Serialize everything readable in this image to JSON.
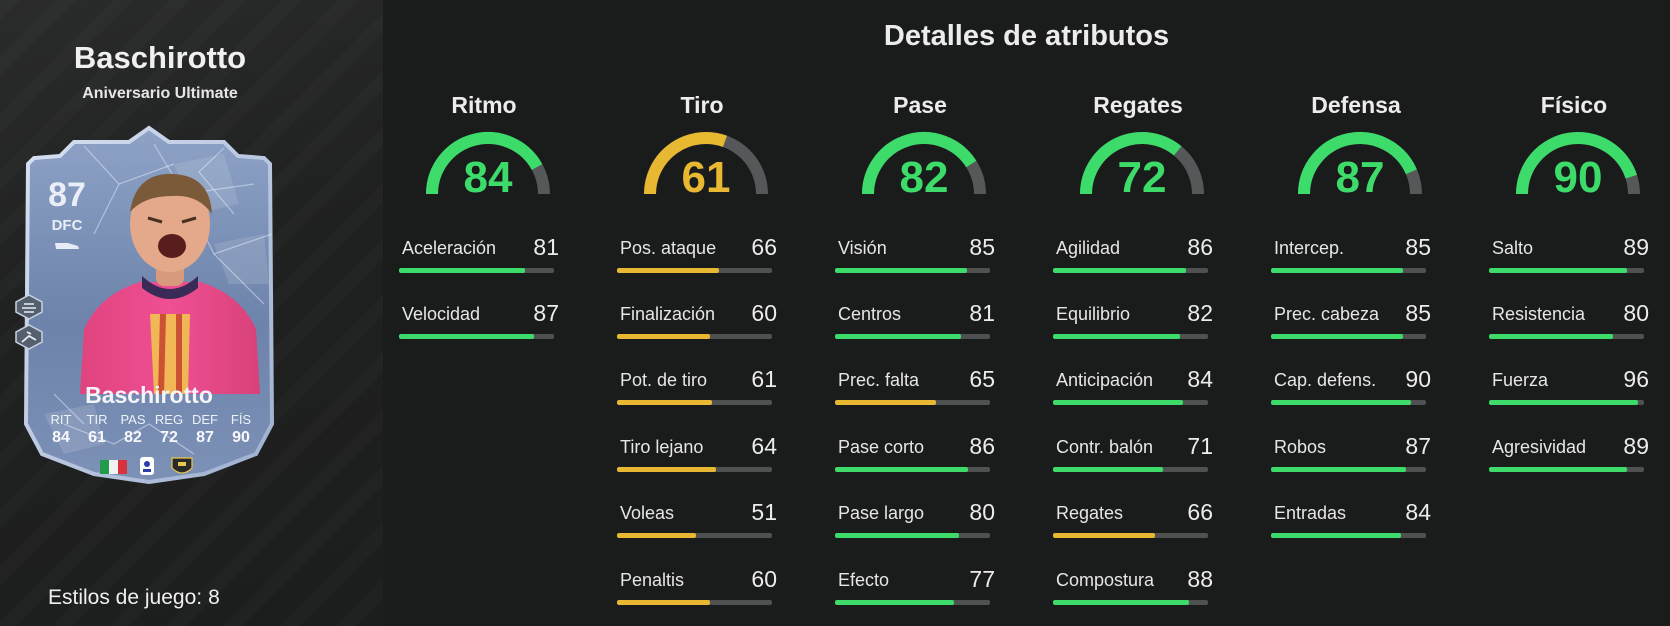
{
  "player": {
    "name": "Baschirotto",
    "subtitle": "Aniversario Ultimate",
    "card": {
      "rating": "87",
      "position": "DFC",
      "name": "Baschirotto",
      "stats": [
        {
          "label": "RIT",
          "value": "84"
        },
        {
          "label": "TIR",
          "value": "61"
        },
        {
          "label": "PAS",
          "value": "82"
        },
        {
          "label": "REG",
          "value": "72"
        },
        {
          "label": "DEF",
          "value": "87"
        },
        {
          "label": "FÍS",
          "value": "90"
        }
      ]
    },
    "playstyles_label": "Estilos de juego:",
    "playstyles_count": "8"
  },
  "title": "Detalles de atributos",
  "colors": {
    "green": "#3ddc6a",
    "yellow": "#e8b833",
    "gauge_track": "#555858",
    "bar_track": "#4f5151"
  },
  "categories": [
    {
      "name": "Ritmo",
      "value": "84",
      "color": "green",
      "attributes": [
        {
          "name": "Aceleración",
          "value": "81",
          "color": "green"
        },
        {
          "name": "Velocidad",
          "value": "87",
          "color": "green"
        }
      ]
    },
    {
      "name": "Tiro",
      "value": "61",
      "color": "yellow",
      "attributes": [
        {
          "name": "Pos. ataque",
          "value": "66",
          "color": "yellow"
        },
        {
          "name": "Finalización",
          "value": "60",
          "color": "yellow"
        },
        {
          "name": "Pot. de tiro",
          "value": "61",
          "color": "yellow"
        },
        {
          "name": "Tiro lejano",
          "value": "64",
          "color": "yellow"
        },
        {
          "name": "Voleas",
          "value": "51",
          "color": "yellow"
        },
        {
          "name": "Penaltis",
          "value": "60",
          "color": "yellow"
        }
      ]
    },
    {
      "name": "Pase",
      "value": "82",
      "color": "green",
      "attributes": [
        {
          "name": "Visión",
          "value": "85",
          "color": "green"
        },
        {
          "name": "Centros",
          "value": "81",
          "color": "green"
        },
        {
          "name": "Prec. falta",
          "value": "65",
          "color": "yellow"
        },
        {
          "name": "Pase corto",
          "value": "86",
          "color": "green"
        },
        {
          "name": "Pase largo",
          "value": "80",
          "color": "green"
        },
        {
          "name": "Efecto",
          "value": "77",
          "color": "green"
        }
      ]
    },
    {
      "name": "Regates",
      "value": "72",
      "color": "green",
      "attributes": [
        {
          "name": "Agilidad",
          "value": "86",
          "color": "green"
        },
        {
          "name": "Equilibrio",
          "value": "82",
          "color": "green"
        },
        {
          "name": "Anticipación",
          "value": "84",
          "color": "green"
        },
        {
          "name": "Contr. balón",
          "value": "71",
          "color": "green"
        },
        {
          "name": "Regates",
          "value": "66",
          "color": "yellow"
        },
        {
          "name": "Compostura",
          "value": "88",
          "color": "green"
        }
      ]
    },
    {
      "name": "Defensa",
      "value": "87",
      "color": "green",
      "attributes": [
        {
          "name": "Intercep.",
          "value": "85",
          "color": "green"
        },
        {
          "name": "Prec. cabeza",
          "value": "85",
          "color": "green"
        },
        {
          "name": "Cap. defens.",
          "value": "90",
          "color": "green"
        },
        {
          "name": "Robos",
          "value": "87",
          "color": "green"
        },
        {
          "name": "Entradas",
          "value": "84",
          "color": "green"
        }
      ]
    },
    {
      "name": "Físico",
      "value": "90",
      "color": "green",
      "attributes": [
        {
          "name": "Salto",
          "value": "89",
          "color": "green"
        },
        {
          "name": "Resistencia",
          "value": "80",
          "color": "green"
        },
        {
          "name": "Fuerza",
          "value": "96",
          "color": "green"
        },
        {
          "name": "Agresividad",
          "value": "89",
          "color": "green"
        }
      ]
    }
  ]
}
